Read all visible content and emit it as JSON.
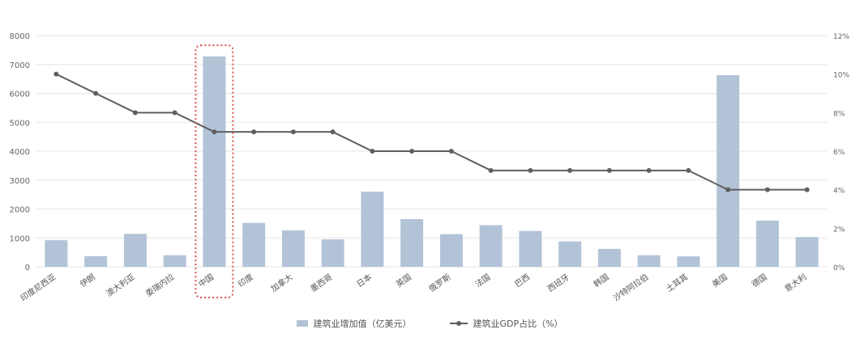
{
  "chart_data": {
    "type": "bar",
    "categories": [
      "印度尼西亚",
      "伊朗",
      "澳大利亚",
      "委瑞内拉",
      "中国",
      "印度",
      "加拿大",
      "墨西哥",
      "日本",
      "英国",
      "俄罗斯",
      "法国",
      "巴西",
      "西班牙",
      "韩国",
      "沙特阿拉伯",
      "土耳其",
      "美国",
      "德国",
      "意大利"
    ],
    "series": [
      {
        "name": "建筑业增加值（亿美元）",
        "kind": "bar",
        "axis": "left",
        "color": "#b3c3d7",
        "values": [
          920,
          370,
          1140,
          400,
          7280,
          1520,
          1260,
          950,
          2600,
          1650,
          1130,
          1440,
          1240,
          880,
          620,
          400,
          360,
          6630,
          1600,
          1030
        ]
      },
      {
        "name": "建筑业GDP占比（%）",
        "kind": "line",
        "axis": "right",
        "color": "#5f5f5f",
        "values": [
          10,
          9,
          8,
          8,
          7,
          7,
          7,
          7,
          6,
          6,
          6,
          5,
          5,
          5,
          5,
          5,
          5,
          4,
          4,
          4
        ]
      }
    ],
    "y_left": {
      "ylim": [
        0,
        8000
      ],
      "ticks": [
        "0",
        "1000",
        "2000",
        "3000",
        "4000",
        "5000",
        "6000",
        "7000",
        "8000"
      ]
    },
    "y_right": {
      "ylim": [
        0,
        12
      ],
      "ticks": [
        "0%",
        "2%",
        "4%",
        "6%",
        "8%",
        "10%",
        "12%"
      ]
    },
    "grid": true,
    "legend_position": "bottom-center",
    "highlight": {
      "category": "中国",
      "style": "dotted-red-box",
      "color": "#d9534f"
    },
    "xlabel": "",
    "ylabel": "",
    "title": ""
  }
}
